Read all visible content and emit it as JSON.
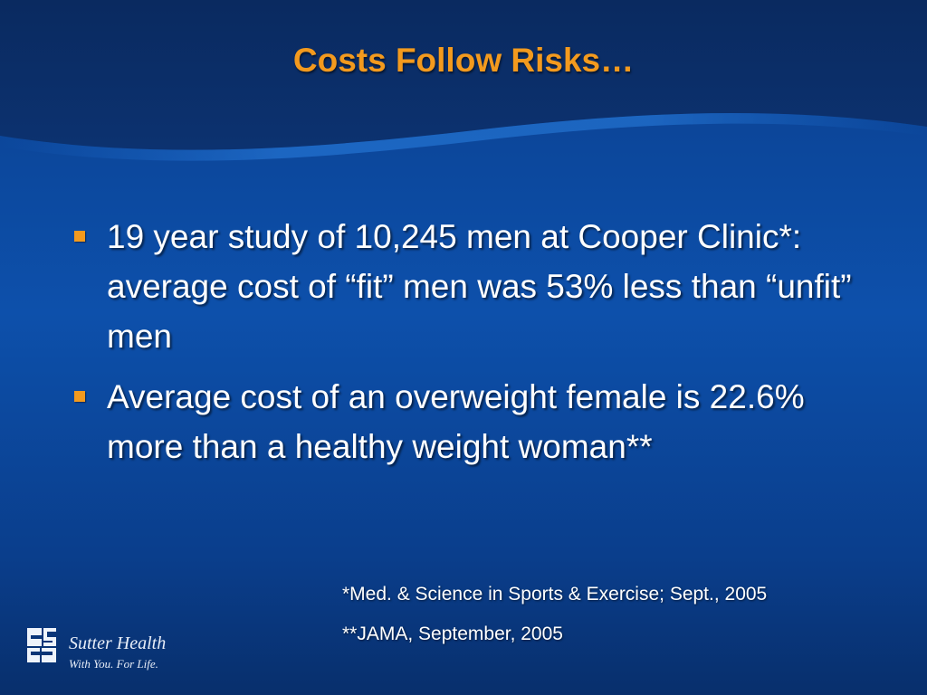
{
  "slide": {
    "title": "Costs Follow Risks…",
    "bullets": [
      "19 year study of 10,245 men at Cooper Clinic*: average cost of “fit” men was 53% less than “unfit” men",
      "Average cost of an overweight female is 22.6% more than a healthy weight woman**"
    ],
    "references": [
      "*Med. & Science in Sports & Exercise; Sept., 2005",
      "**JAMA, September, 2005"
    ]
  },
  "logo": {
    "name": "Sutter Health",
    "tagline": "With You. For Life."
  },
  "colors": {
    "title": "#f39a1e",
    "bullet_marker": "#f39a1e",
    "background": "#0d50ab",
    "header_band": "#0a2a5e",
    "text": "#ffffff"
  }
}
